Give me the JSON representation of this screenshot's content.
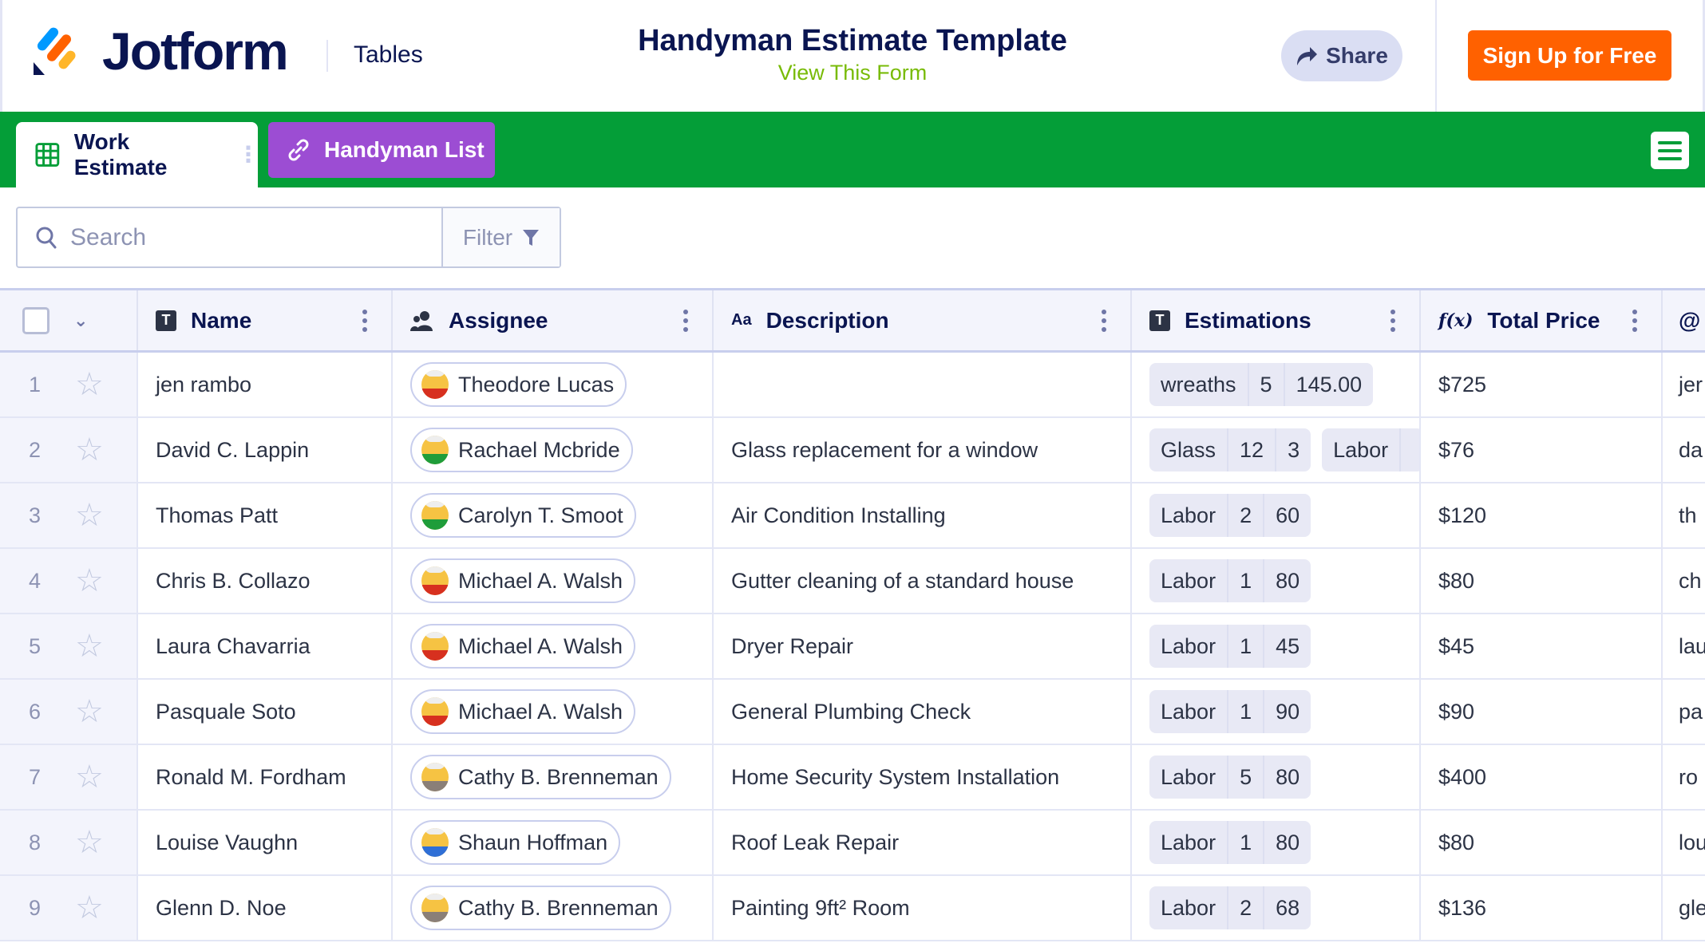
{
  "header": {
    "brand": "Jotform",
    "product": "Tables",
    "title": "Handyman Estimate Template",
    "view_form": "View This Form",
    "share_label": "Share",
    "signup_label": "Sign Up for Free"
  },
  "colors": {
    "green": "#049e38",
    "purple": "#9c4dd3",
    "orange": "#ff6100",
    "navy": "#0a1551"
  },
  "tabs": [
    {
      "label": "Work Estimate",
      "icon": "grid-icon",
      "active": true
    },
    {
      "label": "Handyman List",
      "icon": "link-icon",
      "active": false
    }
  ],
  "toolbar": {
    "search_placeholder": "Search",
    "filter_label": "Filter"
  },
  "columns": [
    {
      "label": "Name",
      "icon": "T"
    },
    {
      "label": "Assignee",
      "icon": "user-group-icon"
    },
    {
      "label": "Description",
      "icon": "Aa"
    },
    {
      "label": "Estimations",
      "icon": "T"
    },
    {
      "label": "Total Price",
      "icon": "f(x)"
    },
    {
      "label": "@",
      "icon": "email-icon"
    }
  ],
  "rows": [
    {
      "num": "1",
      "name": "jen rambo",
      "assignee": "Theodore Lucas",
      "avatar_color": "#d7301f",
      "description": "",
      "estimations": [
        [
          "wreaths",
          "5",
          "145.00"
        ]
      ],
      "total": "$725",
      "email": "jer"
    },
    {
      "num": "2",
      "name": "David C. Lappin",
      "assignee": "Rachael Mcbride",
      "avatar_color": "#1f9d3a",
      "description": "Glass replacement for a window",
      "estimations": [
        [
          "Glass",
          "12",
          "3"
        ],
        [
          "Labor",
          ""
        ]
      ],
      "total": "$76",
      "email": "da"
    },
    {
      "num": "3",
      "name": "Thomas Patt",
      "assignee": "Carolyn T. Smoot",
      "avatar_color": "#1f9d3a",
      "description": "Air Condition Installing",
      "estimations": [
        [
          "Labor",
          "2",
          "60"
        ]
      ],
      "total": "$120",
      "email": "th"
    },
    {
      "num": "4",
      "name": "Chris B. Collazo",
      "assignee": "Michael A. Walsh",
      "avatar_color": "#d7301f",
      "description": "Gutter cleaning of a standard house",
      "estimations": [
        [
          "Labor",
          "1",
          "80"
        ]
      ],
      "total": "$80",
      "email": "ch"
    },
    {
      "num": "5",
      "name": "Laura Chavarria",
      "assignee": "Michael A. Walsh",
      "avatar_color": "#d7301f",
      "description": "Dryer Repair",
      "estimations": [
        [
          "Labor",
          "1",
          "45"
        ]
      ],
      "total": "$45",
      "email": "lau"
    },
    {
      "num": "6",
      "name": "Pasquale Soto",
      "assignee": "Michael A. Walsh",
      "avatar_color": "#d7301f",
      "description": "General Plumbing Check",
      "estimations": [
        [
          "Labor",
          "1",
          "90"
        ]
      ],
      "total": "$90",
      "email": "pa"
    },
    {
      "num": "7",
      "name": "Ronald M. Fordham",
      "assignee": "Cathy B. Brenneman",
      "avatar_color": "#8a7f78",
      "description": "Home Security System Installation",
      "estimations": [
        [
          "Labor",
          "5",
          "80"
        ]
      ],
      "total": "$400",
      "email": "ro"
    },
    {
      "num": "8",
      "name": "Louise Vaughn",
      "assignee": "Shaun Hoffman",
      "avatar_color": "#2f6fd6",
      "description": "Roof Leak Repair",
      "estimations": [
        [
          "Labor",
          "1",
          "80"
        ]
      ],
      "total": "$80",
      "email": "lou"
    },
    {
      "num": "9",
      "name": "Glenn D. Noe",
      "assignee": "Cathy B. Brenneman",
      "avatar_color": "#8a7f78",
      "description": "Painting 9ft² Room",
      "estimations": [
        [
          "Labor",
          "2",
          "68"
        ]
      ],
      "total": "$136",
      "email": "gle"
    }
  ]
}
